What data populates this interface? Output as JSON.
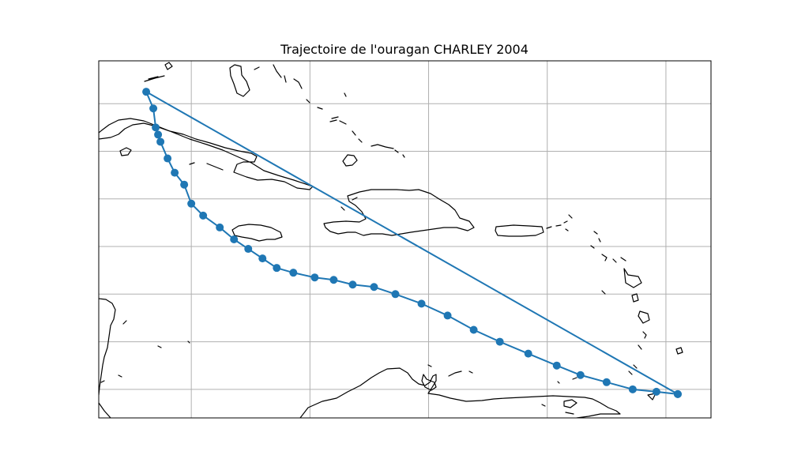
{
  "title": "Trajectoire de l'ouragan CHARLEY 2004",
  "colors": {
    "track": "#1f77b4",
    "grid": "#b0b0b0",
    "coastline": "#000000",
    "frame": "#000000"
  },
  "chart_data": {
    "type": "line",
    "projection": "PlateCarree",
    "xlim": [
      -85.5,
      -59.7
    ],
    "ylim": [
      10.8,
      25.8
    ],
    "grid": true,
    "grid_lon": [
      -81.6,
      -76.6,
      -71.6,
      -66.6,
      -61.6
    ],
    "grid_lat": [
      12,
      14,
      16,
      18,
      20,
      22,
      24
    ],
    "series": [
      {
        "marker": "o",
        "track": [
          [
            -61.1,
            11.8
          ],
          [
            -62.0,
            11.9
          ],
          [
            -63.0,
            12.0
          ],
          [
            -64.1,
            12.3
          ],
          [
            -65.2,
            12.6
          ],
          [
            -66.2,
            13.0
          ],
          [
            -67.4,
            13.5
          ],
          [
            -68.6,
            14.0
          ],
          [
            -69.7,
            14.5
          ],
          [
            -70.8,
            15.1
          ],
          [
            -71.9,
            15.6
          ],
          [
            -73.0,
            16.0
          ],
          [
            -73.9,
            16.3
          ],
          [
            -74.8,
            16.4
          ],
          [
            -75.6,
            16.6
          ],
          [
            -76.4,
            16.7
          ],
          [
            -77.3,
            16.9
          ],
          [
            -78.0,
            17.1
          ],
          [
            -78.6,
            17.5
          ],
          [
            -79.2,
            17.9
          ],
          [
            -79.8,
            18.3
          ],
          [
            -80.4,
            18.8
          ],
          [
            -81.1,
            19.3
          ],
          [
            -81.6,
            19.8
          ],
          [
            -81.9,
            20.6
          ],
          [
            -82.3,
            21.1
          ],
          [
            -82.6,
            21.7
          ],
          [
            -82.9,
            22.4
          ],
          [
            -83.0,
            22.7
          ],
          [
            -83.1,
            23.0
          ],
          [
            -83.2,
            23.8
          ],
          [
            -83.5,
            24.5
          ],
          [
            -61.1,
            11.8
          ]
        ]
      }
    ]
  }
}
